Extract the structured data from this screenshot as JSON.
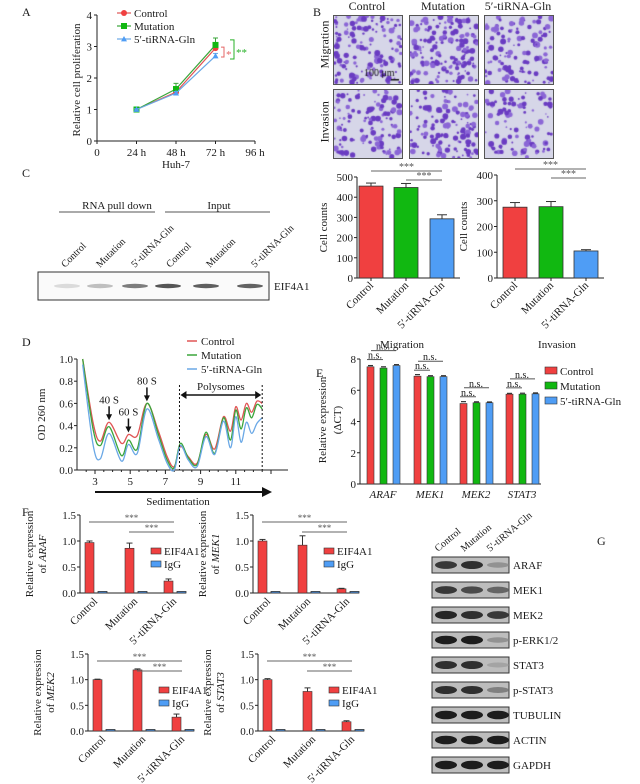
{
  "colors": {
    "control": "#f04040",
    "mutation": "#11b811",
    "tirna": "#4f9df5",
    "sig_red": "#e46565",
    "sig_green": "#27b127",
    "line_control": "#e05555",
    "line_mutation": "#3aa53a",
    "line_tirna": "#6aa8e6",
    "axis": "#222222",
    "stain": "#6b3fb8"
  },
  "panels": {
    "A": "A",
    "B": "B",
    "C": "C",
    "D": "D",
    "E": "E",
    "F": "F",
    "G": "G"
  },
  "chart_data": [
    {
      "id": "A",
      "type": "line",
      "title": "",
      "xlabel": "Huh-7",
      "ylabel": "Relative cell proliferation",
      "x": [
        24,
        48,
        72
      ],
      "xticks": [
        "0",
        "24 h",
        "48 h",
        "72 h",
        "96 h"
      ],
      "xlim": [
        0,
        96
      ],
      "ylim": [
        0,
        4
      ],
      "yticks": [
        "0",
        "1",
        "2",
        "3",
        "4"
      ],
      "legend_position": "top-left",
      "series": [
        {
          "name": "Control",
          "values": [
            1.0,
            1.55,
            2.95
          ],
          "errors": [
            0.02,
            0.08,
            0.12
          ],
          "marker": "circle"
        },
        {
          "name": "Mutation",
          "values": [
            1.0,
            1.65,
            3.05
          ],
          "errors": [
            0.02,
            0.18,
            0.22
          ],
          "marker": "square"
        },
        {
          "name": "5′-tiRNA-Gln",
          "values": [
            1.0,
            1.52,
            2.7
          ],
          "errors": [
            0.02,
            0.05,
            0.08
          ],
          "marker": "triangle"
        }
      ],
      "annotations": [
        {
          "text": "*",
          "between": [
            "Control",
            "5′-tiRNA-Gln"
          ],
          "color": "red"
        },
        {
          "text": "**",
          "between": [
            "Mutation",
            "5′-tiRNA-Gln"
          ],
          "color": "green"
        }
      ]
    },
    {
      "id": "C-migration",
      "type": "bar",
      "xlabel": "Migration",
      "ylabel": "Cell counts",
      "categories": [
        "Control",
        "Mutation",
        "5′-tiRNA-Gln"
      ],
      "values": [
        455,
        448,
        293
      ],
      "errors": [
        15,
        20,
        20
      ],
      "ylim": [
        0,
        500
      ],
      "yticks": [
        "0",
        "100",
        "200",
        "300",
        "400",
        "500"
      ],
      "significance": [
        {
          "from": "Control",
          "to": "5′-tiRNA-Gln",
          "label": "***"
        },
        {
          "from": "Mutation",
          "to": "5′-tiRNA-Gln",
          "label": "***"
        }
      ]
    },
    {
      "id": "C-invasion",
      "type": "bar",
      "xlabel": "Invasion",
      "ylabel": "Cell counts",
      "categories": [
        "Control",
        "Mutation",
        "5′-tiRNA-Gln"
      ],
      "values": [
        275,
        277,
        105
      ],
      "errors": [
        18,
        20,
        5
      ],
      "ylim": [
        0,
        400
      ],
      "yticks": [
        "0",
        "100",
        "200",
        "300",
        "400"
      ],
      "significance": [
        {
          "from": "Control",
          "to": "5′-tiRNA-Gln",
          "label": "***"
        },
        {
          "from": "Mutation",
          "to": "5′-tiRNA-Gln",
          "label": "***"
        }
      ]
    },
    {
      "id": "D",
      "type": "line",
      "xlabel": "Sedimentation",
      "ylabel": "OD 260 nm",
      "xlim": [
        2,
        13
      ],
      "ylim": [
        0,
        1.0
      ],
      "xticks": [
        "3",
        "5",
        "7",
        "9",
        "11"
      ],
      "yticks": [
        "0.0",
        "0.2",
        "0.4",
        "0.6",
        "0.8",
        "1.0"
      ],
      "legend_position": "top-right",
      "annotations": [
        "40 S",
        "60 S",
        "80 S",
        "Polysomes"
      ],
      "peaks": [
        {
          "label": "40 S",
          "x": 3.8
        },
        {
          "label": "60 S",
          "x": 4.9
        },
        {
          "label": "80 S",
          "x": 5.95
        }
      ],
      "polysome_range": [
        7.8,
        12.5
      ],
      "series": [
        {
          "name": "Control",
          "x": [
            2.3,
            2.9,
            3.3,
            3.8,
            4.5,
            4.9,
            5.4,
            5.95,
            6.6,
            7.1,
            7.5,
            7.85,
            8.3,
            8.8,
            9.3,
            9.8,
            10.3,
            10.7,
            11.0,
            11.3,
            11.6,
            11.9,
            12.2,
            12.5
          ],
          "values": [
            1.0,
            0.42,
            0.26,
            0.43,
            0.24,
            0.32,
            0.31,
            0.6,
            0.35,
            0.12,
            0.03,
            0.21,
            0.12,
            0.06,
            0.32,
            0.19,
            0.48,
            0.35,
            0.57,
            0.45,
            0.6,
            0.52,
            0.62,
            0.6
          ]
        },
        {
          "name": "Mutation",
          "x": [
            2.3,
            2.9,
            3.3,
            3.8,
            4.5,
            4.9,
            5.4,
            5.95,
            6.6,
            7.1,
            7.5,
            7.85,
            8.3,
            8.8,
            9.3,
            9.8,
            10.3,
            10.7,
            11.0,
            11.3,
            11.6,
            11.9,
            12.2,
            12.5
          ],
          "values": [
            1.0,
            0.36,
            0.22,
            0.39,
            0.13,
            0.27,
            0.19,
            0.6,
            0.32,
            0.09,
            0.02,
            0.24,
            0.11,
            0.05,
            0.34,
            0.15,
            0.47,
            0.27,
            0.54,
            0.37,
            0.56,
            0.47,
            0.59,
            0.55
          ]
        },
        {
          "name": "5′-tiRNA-Gln",
          "x": [
            2.3,
            2.9,
            3.3,
            3.8,
            4.5,
            4.9,
            5.4,
            5.95,
            6.6,
            7.1,
            7.5,
            7.85,
            8.3,
            8.8,
            9.3,
            9.8,
            10.3,
            10.7,
            11.0,
            11.3,
            11.6,
            11.9,
            12.2,
            12.5
          ],
          "values": [
            0.95,
            0.22,
            0.1,
            0.33,
            0.08,
            0.23,
            0.15,
            0.55,
            0.28,
            0.06,
            0.0,
            0.22,
            0.09,
            0.03,
            0.3,
            0.14,
            0.44,
            0.2,
            0.48,
            0.25,
            0.43,
            0.33,
            0.42,
            0.47
          ]
        }
      ]
    },
    {
      "id": "E",
      "type": "bar",
      "xlabel": "",
      "ylabel": "Relative expression (ΔCT)",
      "categories": [
        "ARAF",
        "MEK1",
        "MEK2",
        "STAT3"
      ],
      "ylim": [
        0,
        8
      ],
      "yticks": [
        "0",
        "2",
        "4",
        "6",
        "8"
      ],
      "legend_position": "right",
      "series": [
        {
          "name": "Control",
          "values": [
            7.5,
            6.9,
            5.15,
            5.75
          ],
          "errors": [
            0.08,
            0.1,
            0.12,
            0.05
          ]
        },
        {
          "name": "Mutation",
          "values": [
            7.42,
            6.87,
            5.2,
            5.75
          ],
          "errors": [
            0.08,
            0.06,
            0.06,
            0.06
          ]
        },
        {
          "name": "5′-tiRNA-Gln",
          "values": [
            7.58,
            6.87,
            5.2,
            5.77
          ],
          "errors": [
            0.06,
            0.06,
            0.05,
            0.06
          ]
        }
      ],
      "significance_label": "n.s."
    },
    {
      "id": "F-ARAF",
      "type": "bar",
      "ylabel": "Relative expression of ARAF",
      "gene": "ARAF",
      "categories": [
        "Control",
        "Mutation",
        "5′-tiRNA-Gln"
      ],
      "ylim": [
        0,
        1.5
      ],
      "yticks": [
        "0.0",
        "0.5",
        "1.0",
        "1.5"
      ],
      "legend_position": "right",
      "series": [
        {
          "name": "EIF4A1",
          "values": [
            0.97,
            0.86,
            0.23
          ],
          "errors": [
            0.03,
            0.1,
            0.04
          ]
        },
        {
          "name": "IgG",
          "values": [
            0.01,
            0.01,
            0.01
          ],
          "errors": [
            0.005,
            0.005,
            0.005
          ]
        }
      ],
      "significance": [
        {
          "from": "Control",
          "to": "5′-tiRNA-Gln",
          "label": "***"
        },
        {
          "from": "Mutation",
          "to": "5′-tiRNA-Gln",
          "label": "***"
        }
      ]
    },
    {
      "id": "F-MEK1",
      "type": "bar",
      "ylabel": "Relative expression of MEK1",
      "gene": "MEK1",
      "categories": [
        "Control",
        "Mutation",
        "5′-tiRNA-Gln"
      ],
      "ylim": [
        0,
        1.5
      ],
      "yticks": [
        "0.0",
        "0.5",
        "1.0",
        "1.5"
      ],
      "legend_position": "right",
      "series": [
        {
          "name": "EIF4A1",
          "values": [
            1.0,
            0.92,
            0.08
          ],
          "errors": [
            0.03,
            0.18,
            0.01
          ]
        },
        {
          "name": "IgG",
          "values": [
            0.01,
            0.01,
            0.01
          ],
          "errors": [
            0.005,
            0.005,
            0.005
          ]
        }
      ],
      "significance": [
        {
          "from": "Control",
          "to": "5′-tiRNA-Gln",
          "label": "***"
        },
        {
          "from": "Mutation",
          "to": "5′-tiRNA-Gln",
          "label": "***"
        }
      ]
    },
    {
      "id": "F-MEK2",
      "type": "bar",
      "ylabel": "Relative expression of MEK2",
      "gene": "MEK2",
      "categories": [
        "Control",
        "Mutation",
        "5′-tiRNA-Gln"
      ],
      "ylim": [
        0,
        1.5
      ],
      "yticks": [
        "0.0",
        "0.5",
        "1.0",
        "1.5"
      ],
      "legend_position": "right",
      "series": [
        {
          "name": "EIF4A1",
          "values": [
            1.0,
            1.19,
            0.27
          ],
          "errors": [
            0.01,
            0.02,
            0.06
          ]
        },
        {
          "name": "IgG",
          "values": [
            0.01,
            0.01,
            0.01
          ],
          "errors": [
            0.005,
            0.005,
            0.005
          ]
        }
      ],
      "significance": [
        {
          "from": "Control",
          "to": "5′-tiRNA-Gln",
          "label": "***"
        },
        {
          "from": "Mutation",
          "to": "5′-tiRNA-Gln",
          "label": "***"
        }
      ]
    },
    {
      "id": "F-STAT3",
      "type": "bar",
      "ylabel": "Relative expression of STAT3",
      "gene": "STAT3",
      "categories": [
        "Control",
        "Mutation",
        "5′-tiRNA-Gln"
      ],
      "ylim": [
        0,
        1.5
      ],
      "yticks": [
        "0.0",
        "0.5",
        "1.0",
        "1.5"
      ],
      "legend_position": "right",
      "series": [
        {
          "name": "EIF4A1",
          "values": [
            1.0,
            0.77,
            0.18
          ],
          "errors": [
            0.02,
            0.07,
            0.02
          ]
        },
        {
          "name": "IgG",
          "values": [
            0.01,
            0.01,
            0.01
          ],
          "errors": [
            0.005,
            0.005,
            0.005
          ]
        }
      ],
      "significance": [
        {
          "from": "Control",
          "to": "5′-tiRNA-Gln",
          "label": "***"
        },
        {
          "from": "Mutation",
          "to": "5′-tiRNA-Gln",
          "label": "***"
        }
      ]
    }
  ],
  "panel_B": {
    "columns": [
      "Control",
      "Mutation",
      "5′-tiRNA-Gln"
    ],
    "rows": [
      "Migration",
      "Invasion"
    ],
    "scale_bar": "100 μm",
    "density": [
      [
        0.55,
        0.6,
        0.45
      ],
      [
        0.45,
        0.5,
        0.35
      ]
    ]
  },
  "panel_C_blot": {
    "group_labels": [
      "RNA pull down",
      "Input"
    ],
    "lanes": [
      "Control",
      "Mutation",
      "5′-tiRNA-Gln",
      "Control",
      "Mutation",
      "5′-tiRNA-Gln"
    ],
    "protein": "EIF4A1",
    "band_intensity": [
      0.08,
      0.22,
      0.55,
      0.75,
      0.7,
      0.68
    ]
  },
  "panel_G_blot": {
    "lanes": [
      "Control",
      "Mutation",
      "5′-tiRNA-Gln"
    ],
    "rows": [
      {
        "protein": "ARAF",
        "intensity": [
          0.8,
          0.85,
          0.3
        ]
      },
      {
        "protein": "MEK1",
        "intensity": [
          0.8,
          0.7,
          0.55
        ]
      },
      {
        "protein": "MEK2",
        "intensity": [
          0.9,
          0.85,
          0.8
        ]
      },
      {
        "protein": "p-ERK1/2",
        "intensity": [
          0.95,
          0.95,
          0.3
        ]
      },
      {
        "protein": "STAT3",
        "intensity": [
          0.85,
          0.85,
          0.2
        ]
      },
      {
        "protein": "p-STAT3",
        "intensity": [
          0.85,
          0.85,
          0.4
        ]
      },
      {
        "protein": "TUBULIN",
        "intensity": [
          0.95,
          0.95,
          0.95
        ]
      },
      {
        "protein": "ACTIN",
        "intensity": [
          0.95,
          0.95,
          0.95
        ]
      },
      {
        "protein": "GAPDH",
        "intensity": [
          0.95,
          0.95,
          0.95
        ]
      }
    ]
  }
}
